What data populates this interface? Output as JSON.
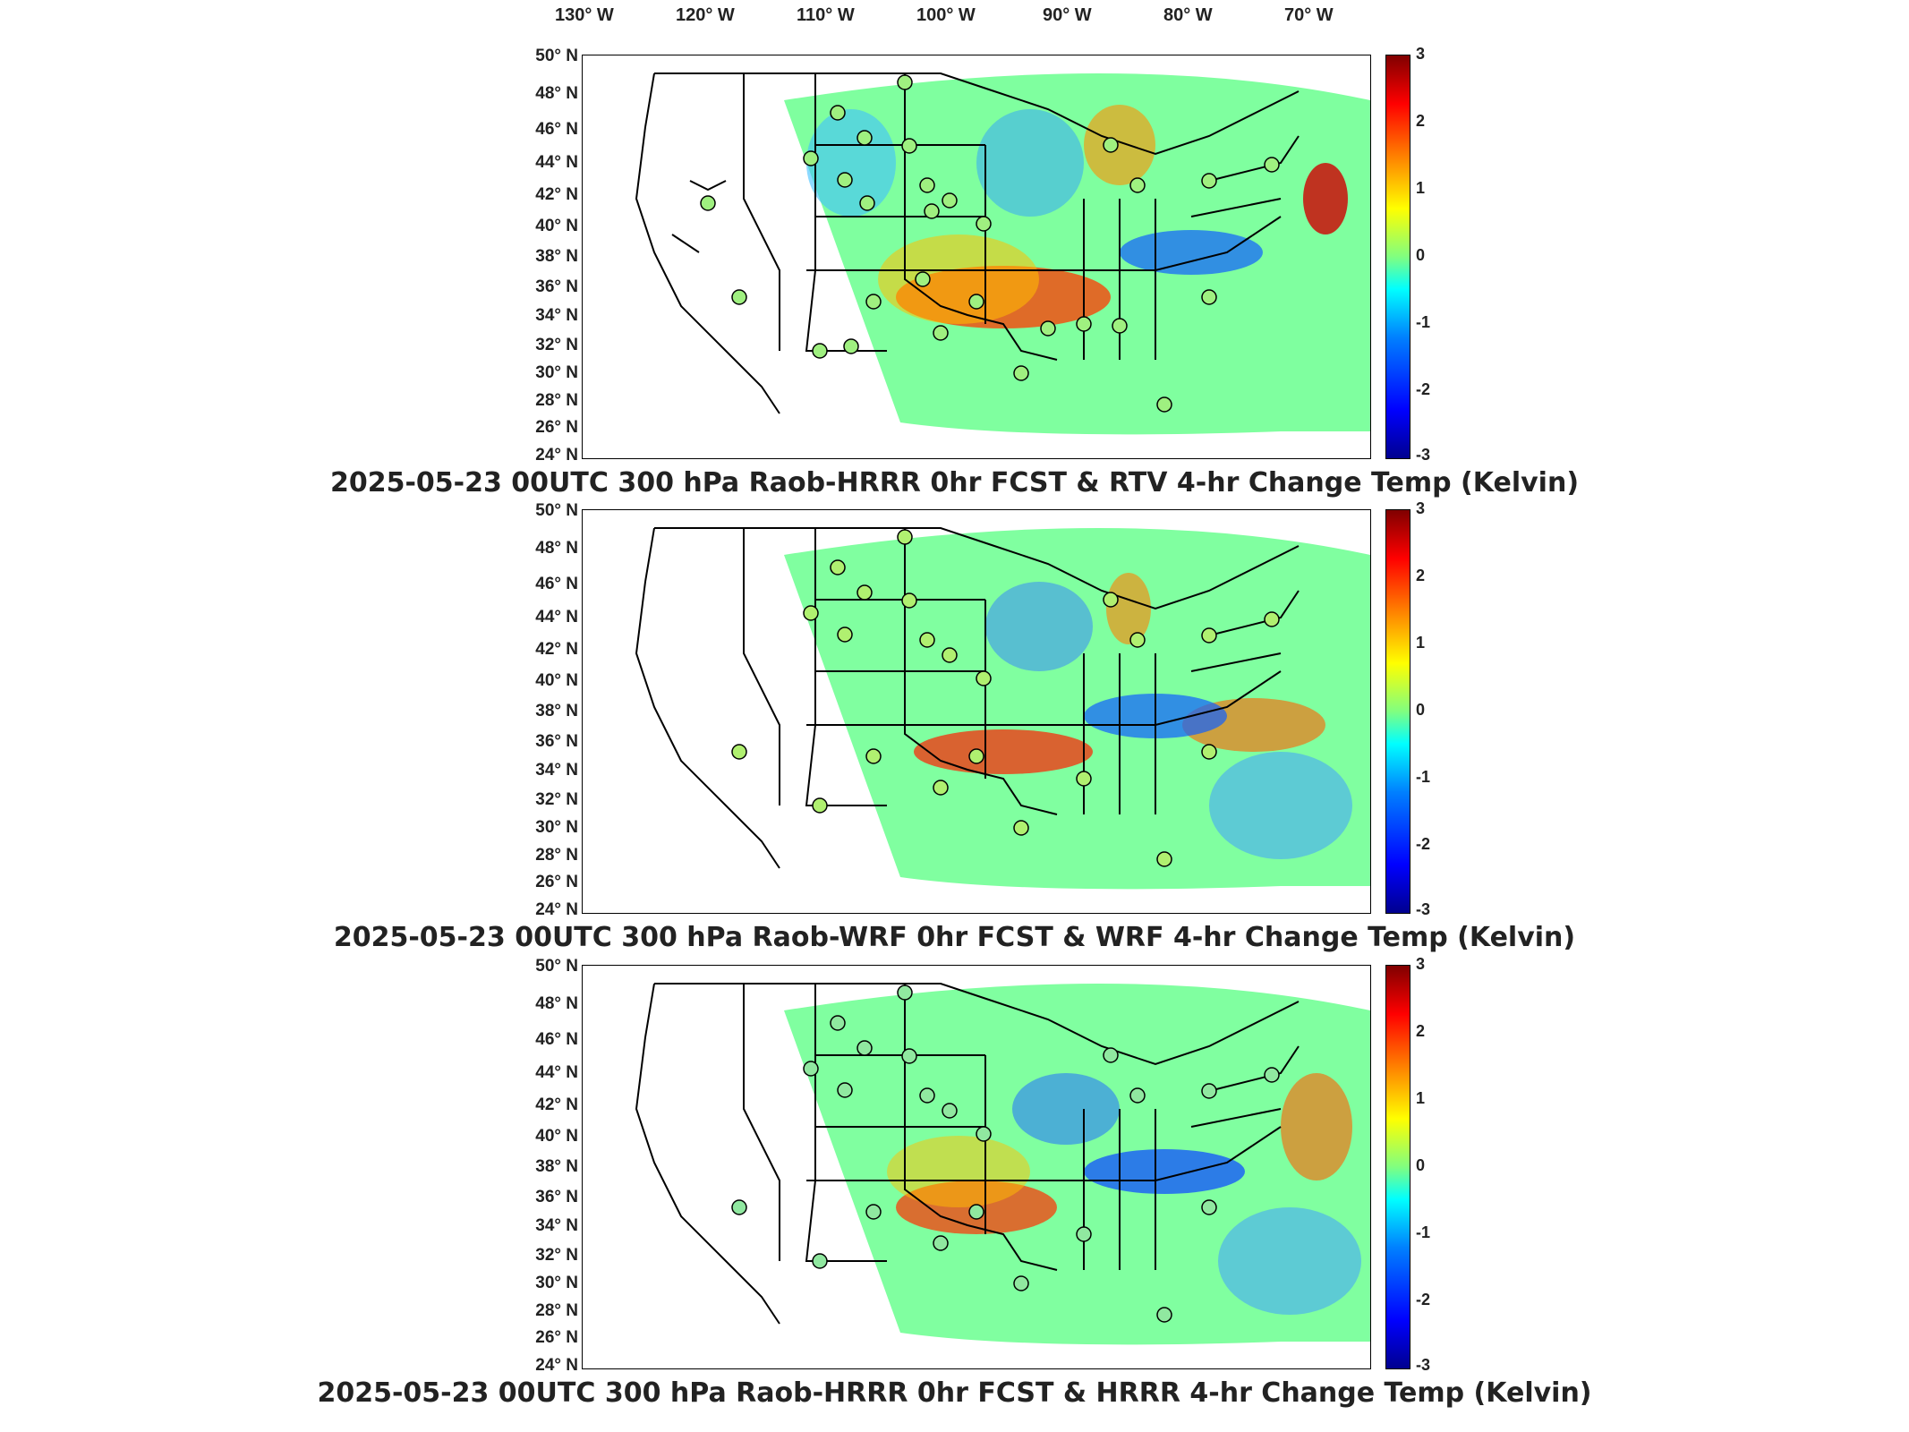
{
  "longitude_labels": [
    "130° W",
    "120° W",
    "110° W",
    "100° W",
    "90° W",
    "80° W",
    "70° W"
  ],
  "latitude_labels": [
    "50° N",
    "48° N",
    "46° N",
    "44° N",
    "42° N",
    "40° N",
    "38° N",
    "36° N",
    "34° N",
    "32° N",
    "30° N",
    "28° N",
    "26° N",
    "24° N"
  ],
  "colorbar": {
    "ticks": [
      "3",
      "2",
      "1",
      "0",
      "-1",
      "-2",
      "-3"
    ],
    "range": [
      -3,
      3
    ],
    "colormap": "jet"
  },
  "panels": [
    {
      "title": "2025-05-23 00UTC 300 hPa Raob-HRRR 0hr FCST & RTV 4-hr Change Temp (Kelvin)"
    },
    {
      "title": "2025-05-23 00UTC 300 hPa Raob-WRF 0hr FCST & WRF 4-hr Change Temp (Kelvin)"
    },
    {
      "title": "2025-05-23 00UTC 300 hPa Raob-HRRR 0hr FCST & HRRR 4-hr Change Temp (Kelvin)"
    }
  ],
  "colors": {
    "field_neutral": "#7fff7f",
    "warm": "#ff4000",
    "cool": "#0060ff",
    "border": "#000000"
  }
}
